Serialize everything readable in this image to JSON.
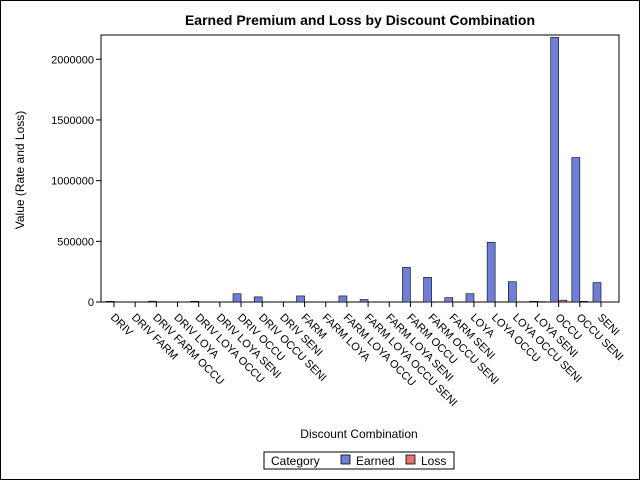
{
  "chart_data": {
    "type": "bar",
    "title": "Earned Premium and Loss by Discount Combination",
    "xlabel": "Discount Combination",
    "ylabel": "Value (Rate and Loss)",
    "ylim": [
      0,
      2200000
    ],
    "yticks": [
      0,
      500000,
      1000000,
      1500000,
      2000000
    ],
    "categories": [
      "DRIV",
      "DRIV FARM",
      "DRIV FARM OCCU",
      "DRIV LOYA",
      "DRIV LOYA OCCU",
      "DRIV LOYA SENI",
      "DRIV OCCU",
      "DRIV OCCU SENI",
      "DRIV SENI",
      "FARM",
      "FARM LOYA",
      "FARM LOYA OCCU",
      "FARM LOYA OCCU SENI",
      "FARM LOYA SENI",
      "FARM OCCU",
      "FARM OCCU SENI",
      "FARM SENI",
      "LOYA",
      "LOYA OCCU",
      "LOYA OCCU SENI",
      "LOYA SENI",
      "OCCU",
      "OCCU SENI",
      "SENI"
    ],
    "legend": {
      "title": "Category",
      "placement": "bottom"
    },
    "series": [
      {
        "name": "Earned",
        "color": "#6f7fd8",
        "values": [
          6000,
          0,
          7000,
          0,
          6000,
          0,
          68000,
          42000,
          0,
          50000,
          0,
          50000,
          20000,
          0,
          285000,
          203000,
          36000,
          68000,
          492000,
          167000,
          5000,
          2180000,
          1190000,
          160000
        ]
      },
      {
        "name": "Loss",
        "color": "#e3736e",
        "values": [
          0,
          0,
          0,
          0,
          0,
          0,
          0,
          0,
          0,
          0,
          0,
          0,
          0,
          0,
          0,
          0,
          0,
          0,
          0,
          0,
          3000,
          15000,
          5000,
          0
        ]
      }
    ]
  }
}
